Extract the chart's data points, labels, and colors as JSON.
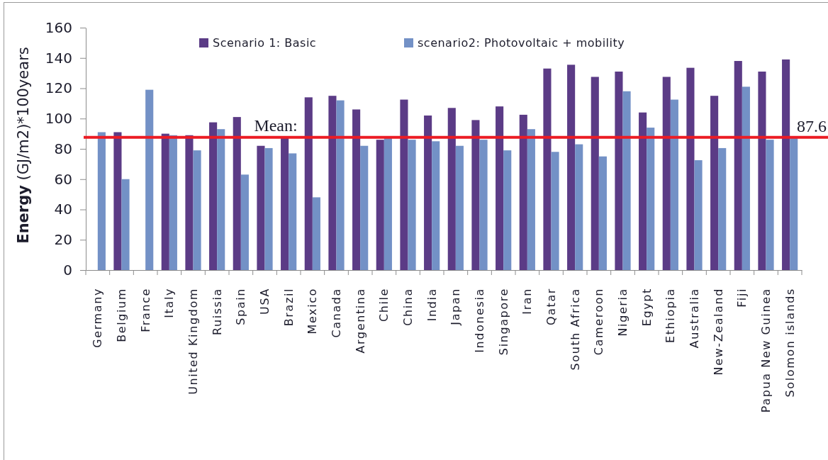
{
  "chart_data": {
    "type": "bar",
    "ylabel": "Energy (GJ/m2)*100years",
    "categories": [
      "Germany",
      "Belgium",
      "France",
      "Italy",
      "United Kingdom",
      "Ruissia",
      "Spain",
      "USA",
      "Brazil",
      "Mexico",
      "Canada",
      "Argentina",
      "Chile",
      "China",
      "India",
      "Japan",
      "Indonesia",
      "Singapore",
      "Iran",
      "Qatar",
      "South Africa",
      "Cameroon",
      "Nigeria",
      "Egypt",
      "Ethiopia",
      "Australia",
      "New-Zealand",
      "Fiji",
      "Papua New Guinea",
      "Solomon islands"
    ],
    "series": [
      {
        "name": "Scenario 1: Basic",
        "color": "#5b3b86",
        "values": [
          null,
          91,
          null,
          90,
          89,
          97.5,
          101,
          82,
          88,
          114,
          115,
          106,
          86,
          112.5,
          102,
          107,
          99,
          108,
          102.5,
          133,
          135.5,
          127.5,
          131,
          104,
          127.5,
          133.5,
          115,
          138,
          131,
          139
        ]
      },
      {
        "name": "scenario2: Photovoltaic + mobility",
        "color": "#7391c6",
        "values": [
          91,
          60,
          119,
          89,
          79,
          93,
          63,
          80.5,
          77,
          48,
          112,
          82,
          87,
          86,
          85,
          82,
          86,
          79,
          93,
          78,
          83,
          75,
          118,
          94,
          112.5,
          72.5,
          80.5,
          121,
          86,
          87
        ]
      }
    ],
    "ylim": [
      0,
      160
    ],
    "yticks": [
      0,
      20,
      40,
      60,
      80,
      100,
      120,
      140,
      160
    ],
    "legend": "top",
    "ref_lines": [
      {
        "axis": "y",
        "value": 87.6,
        "label": "87.6",
        "color": "#ec1c24"
      }
    ],
    "annotations": [
      {
        "text": "Mean:",
        "x": "USA",
        "y": 87.6
      }
    ]
  }
}
